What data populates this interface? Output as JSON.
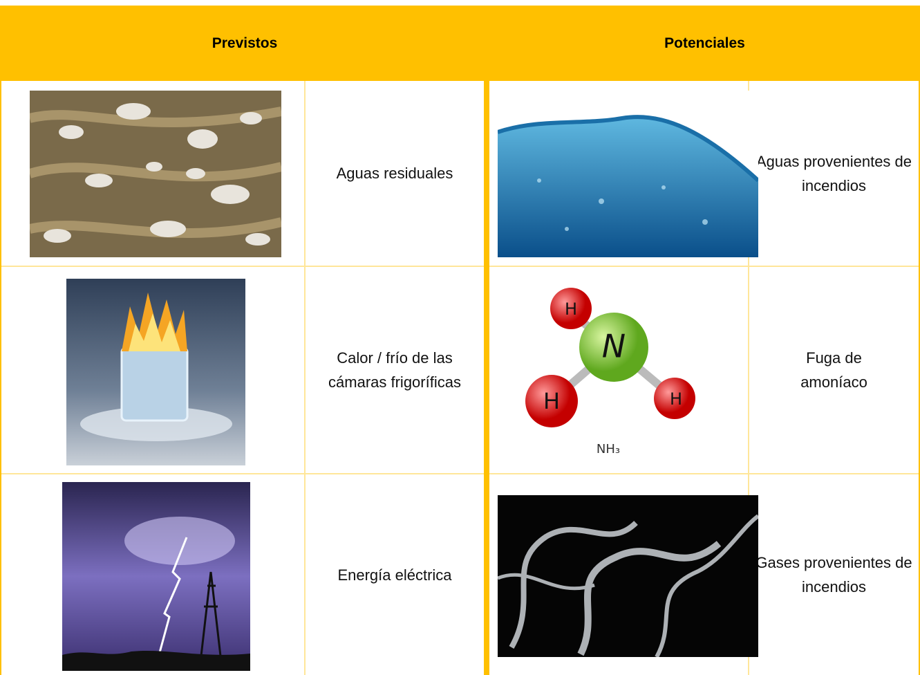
{
  "header": {
    "columns": [
      "Previstos",
      "Potenciales"
    ]
  },
  "table": {
    "rows": [
      [
        "Aguas residuales",
        "Aguas provenientes de incendios"
      ],
      [
        "Calor / frío de las cámaras frigoríficas",
        "Fuga de amoníaco"
      ],
      [
        "Energía eléctrica",
        "Gases provenientes de incendios"
      ]
    ]
  },
  "images": {
    "molecule_atoms": [
      "H",
      "N",
      "H",
      "H"
    ],
    "molecule_formula": "NH₃"
  }
}
